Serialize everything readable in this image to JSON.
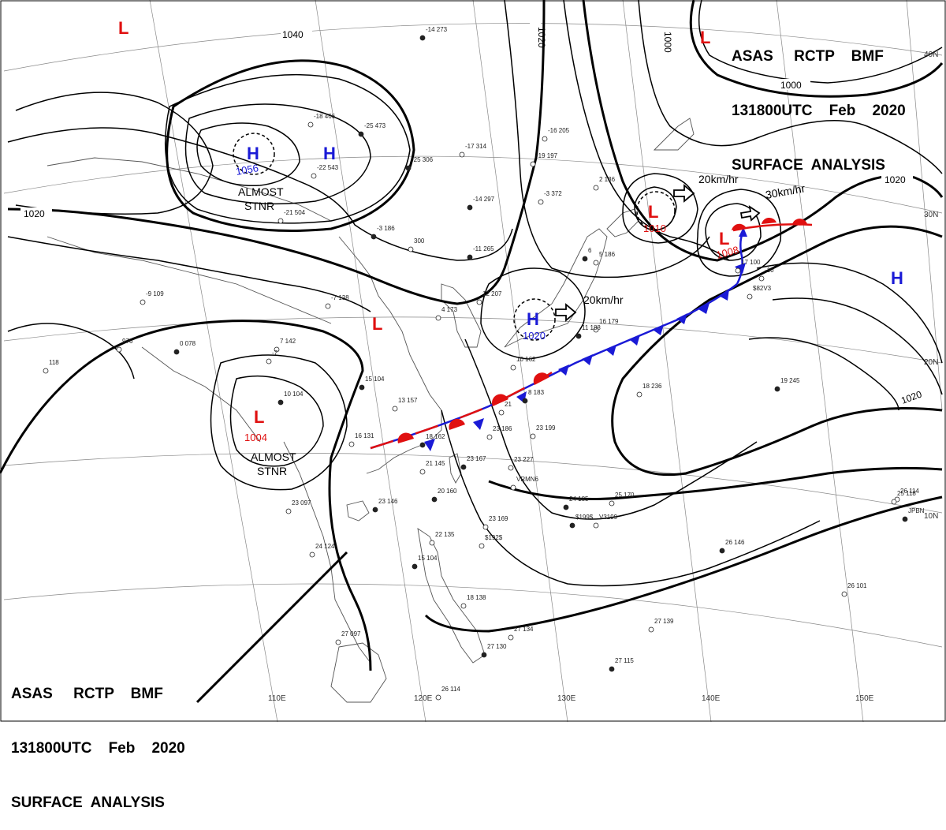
{
  "header": {
    "line1": "ASAS     RCTP    BMF",
    "line2": "131800UTC    Feb    2020",
    "line3": "SURFACE  ANALYSIS"
  },
  "colors": {
    "high": "#1a1ad6",
    "low": "#e01010",
    "isobar": "#000000",
    "coast": "#555555",
    "grid": "#888888"
  },
  "pressure_centers": [
    {
      "type": "L",
      "value": ""
    },
    {
      "type": "H",
      "value": "1056"
    },
    {
      "type": "H",
      "value": ""
    },
    {
      "type": "L",
      "value": "1010"
    },
    {
      "type": "L",
      "value": "1008"
    },
    {
      "type": "H",
      "value": "1020"
    },
    {
      "type": "L",
      "value": ""
    },
    {
      "type": "L",
      "value": "1004"
    },
    {
      "type": "H",
      "value": ""
    },
    {
      "type": "L",
      "value": ""
    }
  ],
  "center_notes": {
    "stnr1": [
      "ALMOST",
      "STNR"
    ],
    "stnr2": [
      "ALMOST",
      "STNR"
    ]
  },
  "motion_labels": [
    "20km/hr",
    "30km/hr",
    "20km/hr"
  ],
  "isobar_labels": [
    "1040",
    "1020",
    "1020",
    "1000",
    "1020",
    "1020",
    "1000"
  ],
  "longitude_labels": [
    "110E",
    "120E",
    "130E",
    "140E",
    "150E"
  ],
  "latitude_labels": [
    "40N",
    "30N",
    "20N",
    "10N"
  ],
  "station_samples": [
    "-14 273",
    "-18 466",
    "-22 543",
    "-25 473",
    "-21 504",
    "-17 314",
    "-25 306",
    "-16 205",
    "-19 197",
    "-14 297",
    "-3 372",
    "2 136",
    "-11 265",
    "300",
    "-9 109",
    "0 078",
    "976",
    "118",
    "-3 186",
    "7 142",
    "-7 138",
    "10 104",
    "4 173",
    "-7",
    "15 104",
    "13 157",
    "16 131",
    "18 162",
    "21",
    "23 186",
    "23 167",
    "23 227",
    "21 145",
    "20 160",
    "23 199",
    "23 097",
    "23 146",
    "24 124",
    "23 169",
    "24 185",
    "25 170",
    "22 135",
    "15 104",
    "18 138",
    "27 097",
    "27 130",
    "27 134",
    "27 139",
    "26 146",
    "26 101",
    "26 114",
    "27 115",
    "26 114",
    "25 118",
    "19 245",
    "18 236",
    "16 179",
    "11 188",
    "12 207",
    "10 162",
    "8 183",
    "5 186",
    "17 100",
    "6",
    "-10",
    "VRMN6",
    "$199$",
    "$192$",
    "V3199",
    "JPBN",
    "$82V3"
  ]
}
